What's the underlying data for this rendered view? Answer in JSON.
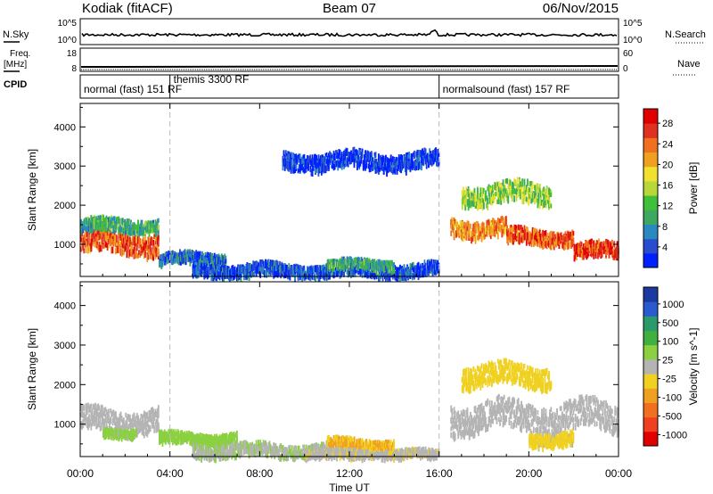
{
  "header": {
    "station": "Kodiak (fitACF)",
    "beam": "Beam 07",
    "date": "06/Nov/2015"
  },
  "side_labels": {
    "nsky": "N.Sky",
    "freq_line1": "Freq.",
    "freq_line2": "[MHz]",
    "cpid": "CPID",
    "nsearch": "N.Search",
    "nave": "Nave",
    "nsky_top": "10^5",
    "nsky_bottom": "10^0",
    "nsearch_top": "10^5",
    "nsearch_bottom": "10^0",
    "freq_top": "18",
    "freq_bottom": "8",
    "nave_top": "60",
    "nave_bottom": "0"
  },
  "cpid_segments": [
    {
      "start": 0,
      "end": 4,
      "label": "normal (fast) 151 RF",
      "row": "low"
    },
    {
      "start": 4,
      "end": 16,
      "label": "themis 3300 RF",
      "row": "high"
    },
    {
      "start": 16,
      "end": 24,
      "label": "normalsound (fast) 157 RF",
      "row": "low"
    }
  ],
  "chart_data": [
    {
      "type": "heatmap",
      "name": "power",
      "ylabel": "Slant Range [km]",
      "xlabel": "Time UT",
      "xlim": [
        0,
        24
      ],
      "ylim": [
        180,
        4600
      ],
      "x_ticks": [
        0,
        4,
        8,
        12,
        16,
        20,
        24
      ],
      "x_tick_labels": [
        "00:00",
        "04:00",
        "08:00",
        "12:00",
        "16:00",
        "20:00",
        "00:00"
      ],
      "y_ticks": [
        1000,
        2000,
        3000,
        4000
      ],
      "colorbar": {
        "label": "Power [dB]",
        "ticks": [
          "4",
          "8",
          "12",
          "16",
          "20",
          "24",
          "28"
        ],
        "colors": [
          "#0020ff",
          "#2a4dd0",
          "#2a8ac0",
          "#3ea860",
          "#3fbf3a",
          "#b8d83a",
          "#f0e030",
          "#f0a020",
          "#f07020",
          "#e03020",
          "#e00000"
        ]
      },
      "echo_regions": [
        {
          "x0": 0.0,
          "x1": 3.5,
          "y_center": 1100,
          "width": 500,
          "value": 26
        },
        {
          "x0": 0.0,
          "x1": 3.5,
          "y_center": 1550,
          "width": 300,
          "value": 12
        },
        {
          "x0": 3.5,
          "x1": 6.5,
          "y_center": 700,
          "width": 250,
          "value": 8
        },
        {
          "x0": 5.0,
          "x1": 16.0,
          "y_center": 400,
          "width": 300,
          "value": 6
        },
        {
          "x0": 11.0,
          "x1": 14.0,
          "y_center": 550,
          "width": 200,
          "value": 12
        },
        {
          "x0": 16.5,
          "x1": 19.0,
          "y_center": 1500,
          "width": 400,
          "value": 24
        },
        {
          "x0": 19.0,
          "x1": 22.0,
          "y_center": 1250,
          "width": 350,
          "value": 26
        },
        {
          "x0": 22.0,
          "x1": 24.0,
          "y_center": 900,
          "width": 350,
          "value": 28
        },
        {
          "x0": 17.0,
          "x1": 21.0,
          "y_center": 2350,
          "width": 500,
          "value": 16
        },
        {
          "x0": 9.0,
          "x1": 16.0,
          "y_center": 3200,
          "width": 400,
          "value": 4
        }
      ]
    },
    {
      "type": "heatmap",
      "name": "velocity",
      "ylabel": "Slant Range [km]",
      "xlabel": "Time UT",
      "xlim": [
        0,
        24
      ],
      "ylim": [
        180,
        4600
      ],
      "x_ticks": [
        0,
        4,
        8,
        12,
        16,
        20,
        24
      ],
      "x_tick_labels": [
        "00:00",
        "04:00",
        "08:00",
        "12:00",
        "16:00",
        "20:00",
        "00:00"
      ],
      "y_ticks": [
        1000,
        2000,
        3000,
        4000
      ],
      "colorbar": {
        "label": "Velocity [m s^-1]",
        "ticks": [
          "1000",
          "500",
          "100",
          "25",
          "-25",
          "-100",
          "-500",
          "-1000"
        ],
        "colors": [
          "#1a3aa0",
          "#2a5ad0",
          "#2a9a6a",
          "#40b040",
          "#8ad040",
          "#b4b4b4",
          "#f0d020",
          "#f0a020",
          "#f07020",
          "#f04020",
          "#e00000"
        ]
      },
      "echo_regions": [
        {
          "x0": 0.0,
          "x1": 3.5,
          "y_center": 1150,
          "width": 550,
          "value": 0
        },
        {
          "x0": 1.0,
          "x1": 2.5,
          "y_center": 850,
          "width": 150,
          "value": 150
        },
        {
          "x0": 3.5,
          "x1": 7.0,
          "y_center": 700,
          "width": 250,
          "value": 200
        },
        {
          "x0": 5.0,
          "x1": 11.0,
          "y_center": 400,
          "width": 300,
          "value": 80
        },
        {
          "x0": 11.0,
          "x1": 14.0,
          "y_center": 550,
          "width": 250,
          "value": -300
        },
        {
          "x0": 10.0,
          "x1": 16.0,
          "y_center": 300,
          "width": 200,
          "value": -60
        },
        {
          "x0": 16.5,
          "x1": 24.0,
          "y_center": 1250,
          "width": 700,
          "value": 0
        },
        {
          "x0": 17.0,
          "x1": 21.0,
          "y_center": 2300,
          "width": 500,
          "value": -200
        },
        {
          "x0": 20.0,
          "x1": 22.0,
          "y_center": 700,
          "width": 300,
          "value": -150
        }
      ]
    }
  ]
}
